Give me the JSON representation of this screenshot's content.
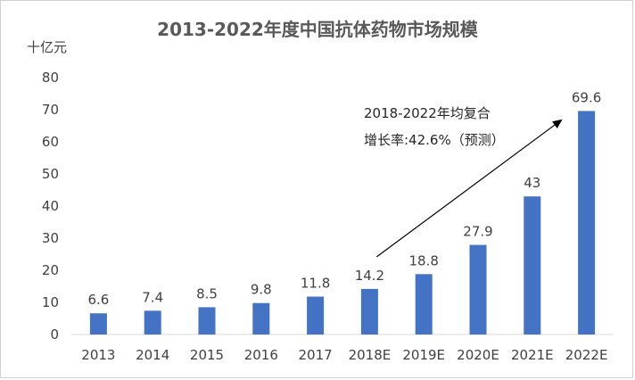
{
  "chart_data": {
    "type": "bar",
    "title": "2013-2022年度中国抗体药物市场规模",
    "ylabel": "十亿元",
    "xlabel": "",
    "ylim": [
      0,
      80
    ],
    "yticks": [
      0,
      10,
      20,
      30,
      40,
      50,
      60,
      70,
      80
    ],
    "categories": [
      "2013",
      "2014",
      "2015",
      "2016",
      "2017",
      "2018E",
      "2019E",
      "2020E",
      "2021E",
      "2022E"
    ],
    "values": [
      6.6,
      7.4,
      8.5,
      9.8,
      11.8,
      14.2,
      18.8,
      27.9,
      43,
      69.6
    ],
    "data_labels": [
      "6.6",
      "7.4",
      "8.5",
      "9.8",
      "11.8",
      "14.2",
      "18.8",
      "27.9",
      "43",
      "69.6"
    ],
    "bar_color": "#4472C4",
    "grid": false,
    "annotation": {
      "line1": "2018-2022年均复合",
      "line2": "增长率:42.6%（预测）",
      "arrow_from_category": "2018E",
      "arrow_to_category": "2022E"
    }
  }
}
